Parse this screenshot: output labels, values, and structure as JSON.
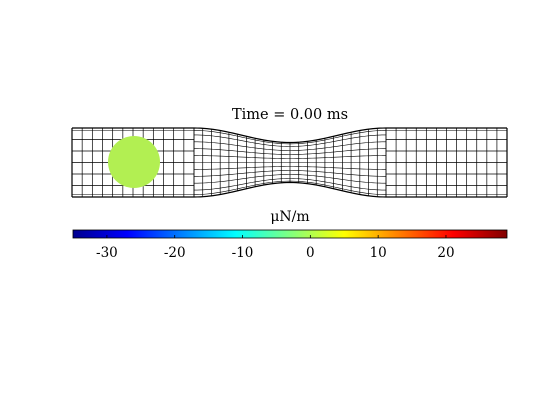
{
  "figure": {
    "title": "Time = 0.00 ms",
    "background": "#ffffff",
    "mesh_color": "#000000",
    "mesh_pattern": {
      "left_section": {
        "columns": 12,
        "rows": 6
      },
      "constriction": {
        "columns": 22,
        "rows": 10
      },
      "right_section": {
        "columns": 12,
        "rows": 6
      }
    },
    "blob": {
      "color": "#b2ef52",
      "shape": "circle"
    }
  },
  "colorbar": {
    "label": "μN/m",
    "min": -35,
    "max": 29,
    "ticks": [
      {
        "value": -30,
        "label": "-30"
      },
      {
        "value": -20,
        "label": "-20"
      },
      {
        "value": -10,
        "label": "-10"
      },
      {
        "value": 0,
        "label": "0"
      },
      {
        "value": 10,
        "label": "10"
      },
      {
        "value": 20,
        "label": "20"
      }
    ],
    "colormap": "jet",
    "colormap_stops": [
      "#00008f",
      "#0000ff",
      "#00ffff",
      "#ffff00",
      "#ff0000",
      "#800000"
    ]
  }
}
